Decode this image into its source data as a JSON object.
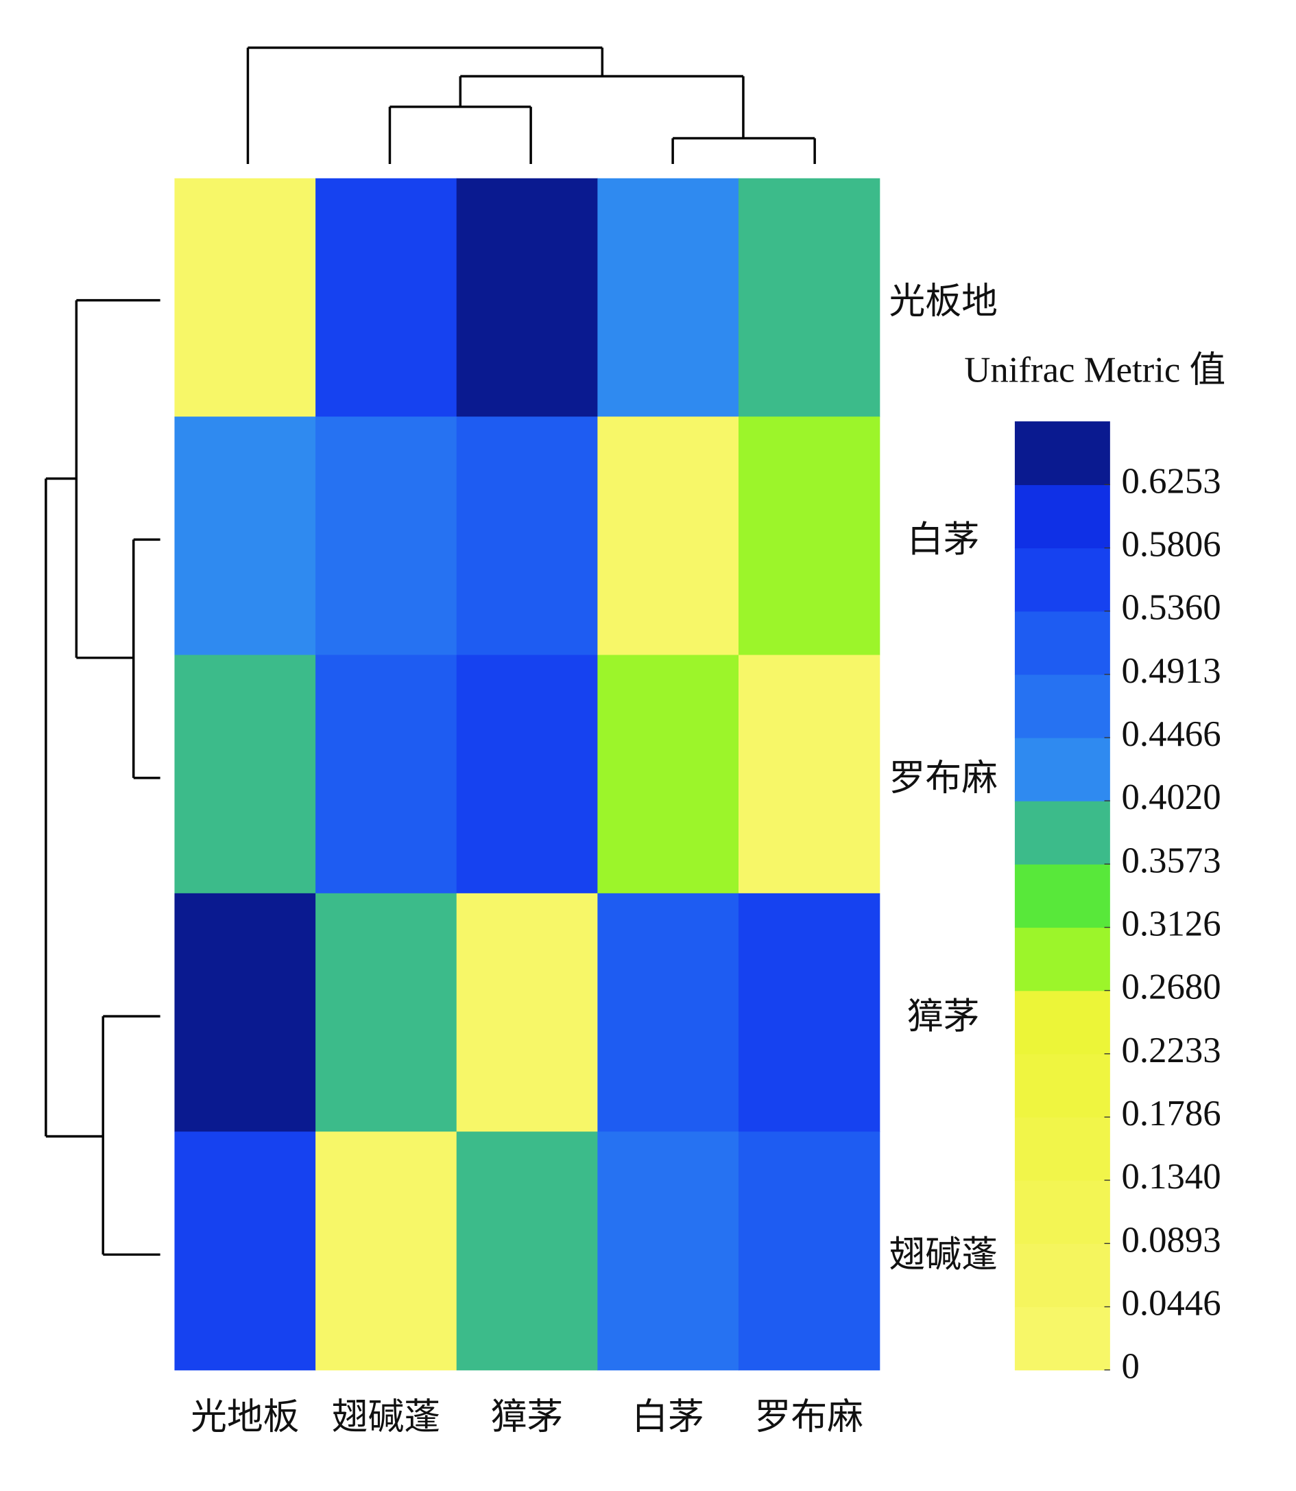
{
  "chart_data": {
    "type": "heatmap",
    "x": [
      "光地板",
      "翅碱蓬",
      "獐茅",
      "白茅",
      "罗布麻"
    ],
    "y": [
      "光板地",
      "白茅",
      "罗布麻",
      "獐茅",
      "翅碱蓬"
    ],
    "values": [
      [
        0,
        0.56,
        0.64,
        0.42,
        0.37
      ],
      [
        0.43,
        0.47,
        0.5,
        0,
        0.29
      ],
      [
        0.37,
        0.53,
        0.55,
        0.3,
        0
      ],
      [
        0.64,
        0.37,
        0,
        0.52,
        0.56
      ],
      [
        0.55,
        0,
        0.37,
        0.48,
        0.5
      ]
    ],
    "colorbar_title": "Unifrac Metric 值",
    "zlim": [
      0,
      0.67
    ],
    "zticks": [
      0,
      0.0446,
      0.0893,
      {
        "value": 0.134,
        "label": "0.1340"
      },
      0.1786,
      0.2233,
      {
        "value": 0.268,
        "label": "0.2680"
      },
      0.3126,
      0.3573,
      {
        "value": 0.402,
        "label": "0.4020"
      },
      0.4466,
      0.4913,
      {
        "value": 0.536,
        "label": "0.5360"
      },
      0.5806,
      0.6253
    ],
    "colormap": [
      "#f7f768",
      "#f5f55e",
      "#f3f554",
      "#f1f54a",
      "#eff540",
      "#ecf538",
      "#9cf52a",
      "#58e83a",
      "#3cbb8a",
      "#2f8af0",
      "#2672f2",
      "#1e5cf2",
      "#1642f0",
      "#0f30e6",
      "#0a1a90"
    ]
  }
}
